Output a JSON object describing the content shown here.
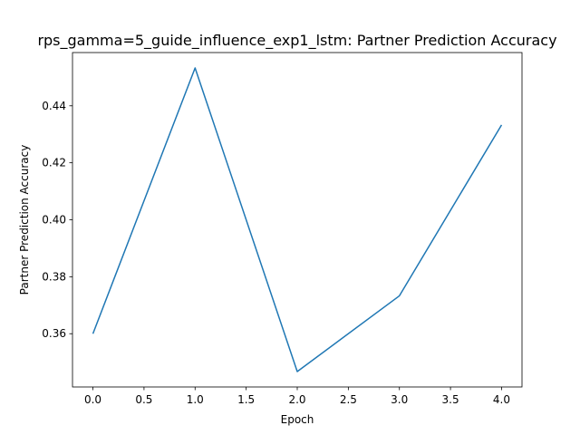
{
  "chart_data": {
    "type": "line",
    "title": "rps_gamma=5_guide_influence_exp1_lstm: Partner Prediction Accuracy",
    "xlabel": "Epoch",
    "ylabel": "Partner Prediction Accuracy",
    "x": [
      0,
      1,
      2,
      3,
      4
    ],
    "series": [
      {
        "values": [
          0.36,
          0.4533,
          0.3467,
          0.3733,
          0.4333
        ],
        "color": "#1f77b4"
      }
    ],
    "xlim": [
      -0.2,
      4.2
    ],
    "ylim": [
      0.3413,
      0.4587
    ],
    "xticks": [
      0.0,
      0.5,
      1.0,
      1.5,
      2.0,
      2.5,
      3.0,
      3.5,
      4.0
    ],
    "xtick_labels": [
      "0.0",
      "0.5",
      "1.0",
      "1.5",
      "2.0",
      "2.5",
      "3.0",
      "3.5",
      "4.0"
    ],
    "yticks": [
      0.36,
      0.38,
      0.4,
      0.42,
      0.44
    ],
    "ytick_labels": [
      "0.36",
      "0.38",
      "0.40",
      "0.42",
      "0.44"
    ],
    "grid": false,
    "legend": "none"
  }
}
